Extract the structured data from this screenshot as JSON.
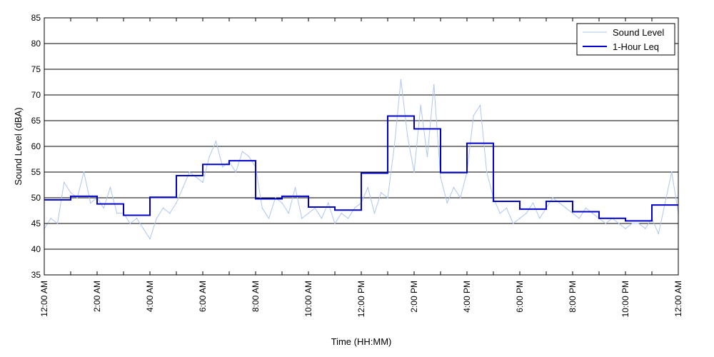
{
  "chart_data": {
    "type": "line",
    "xlabel": "Time (HH:MM)",
    "ylabel": "Sound Level (dBA)",
    "ylim": [
      35,
      85
    ],
    "yticks": [
      35,
      40,
      45,
      50,
      55,
      60,
      65,
      70,
      75,
      80,
      85
    ],
    "xlim": [
      0,
      24
    ],
    "xticks": [
      0,
      2,
      4,
      6,
      8,
      10,
      12,
      14,
      16,
      18,
      20,
      22,
      24
    ],
    "xtick_labels": [
      "12:00 AM",
      "2:00 AM",
      "4:00 AM",
      "6:00 AM",
      "8:00 AM",
      "10:00 AM",
      "12:00 PM",
      "2:00 PM",
      "4:00 PM",
      "6:00 PM",
      "8:00 PM",
      "10:00 PM",
      "12:00 AM"
    ],
    "grid": "horizontal",
    "legend": {
      "position": "top-right",
      "entries": [
        "Sound Level",
        "1-Hour Leq"
      ]
    },
    "colors": {
      "sound_level": "#aec6f2",
      "leq": "#0000cc"
    },
    "series": [
      {
        "name": "Sound Level",
        "x_hours": [
          0,
          0.25,
          0.5,
          0.75,
          1,
          1.25,
          1.5,
          1.75,
          2,
          2.25,
          2.5,
          2.75,
          3,
          3.25,
          3.5,
          3.75,
          4,
          4.25,
          4.5,
          4.75,
          5,
          5.25,
          5.5,
          5.75,
          6,
          6.25,
          6.5,
          6.75,
          7,
          7.25,
          7.5,
          7.75,
          8,
          8.25,
          8.5,
          8.75,
          9,
          9.25,
          9.5,
          9.75,
          10,
          10.25,
          10.5,
          10.75,
          11,
          11.25,
          11.5,
          11.75,
          12,
          12.25,
          12.5,
          12.75,
          13,
          13.25,
          13.5,
          13.75,
          14,
          14.25,
          14.5,
          14.75,
          15,
          15.25,
          15.5,
          15.75,
          16,
          16.25,
          16.5,
          16.75,
          17,
          17.25,
          17.5,
          17.75,
          18,
          18.25,
          18.5,
          18.75,
          19,
          19.25,
          19.5,
          19.75,
          20,
          20.25,
          20.5,
          20.75,
          21,
          21.25,
          21.5,
          21.75,
          22,
          22.25,
          22.5,
          22.75,
          23,
          23.25,
          23.5,
          23.75,
          24
        ],
        "values": [
          44,
          46,
          45,
          53,
          51,
          50,
          55,
          49,
          50,
          48,
          52,
          47,
          47,
          45,
          46,
          44,
          42,
          46,
          48,
          47,
          49,
          52,
          55,
          54,
          53,
          58,
          61,
          56,
          57,
          55,
          59,
          58,
          56,
          48,
          46,
          50,
          49,
          47,
          52,
          46,
          47,
          48,
          46,
          49,
          45,
          47,
          46,
          48,
          49,
          52,
          47,
          51,
          50,
          60,
          73,
          62,
          55,
          68,
          58,
          72,
          54,
          49,
          52,
          50,
          55,
          66,
          68,
          55,
          50,
          47,
          48,
          45,
          46,
          47,
          49,
          46,
          48,
          50,
          49,
          48,
          47,
          46,
          48,
          47,
          46,
          45,
          46,
          45,
          44,
          45,
          45,
          44,
          46,
          43,
          49,
          55,
          47
        ]
      },
      {
        "name": "1-Hour Leq",
        "step_start_hours": [
          0,
          1,
          2,
          3,
          4,
          5,
          6,
          7,
          8,
          9,
          10,
          11,
          12,
          13,
          14,
          15,
          16,
          17,
          18,
          19,
          20,
          21,
          22,
          23
        ],
        "values": [
          49.6,
          50.3,
          48.8,
          46.6,
          50.1,
          54.3,
          56.5,
          57.2,
          49.8,
          50.3,
          48.2,
          47.6,
          54.8,
          65.9,
          63.4,
          54.9,
          60.6,
          49.3,
          47.8,
          49.3,
          47.3,
          46.0,
          45.5,
          48.6
        ]
      }
    ]
  }
}
